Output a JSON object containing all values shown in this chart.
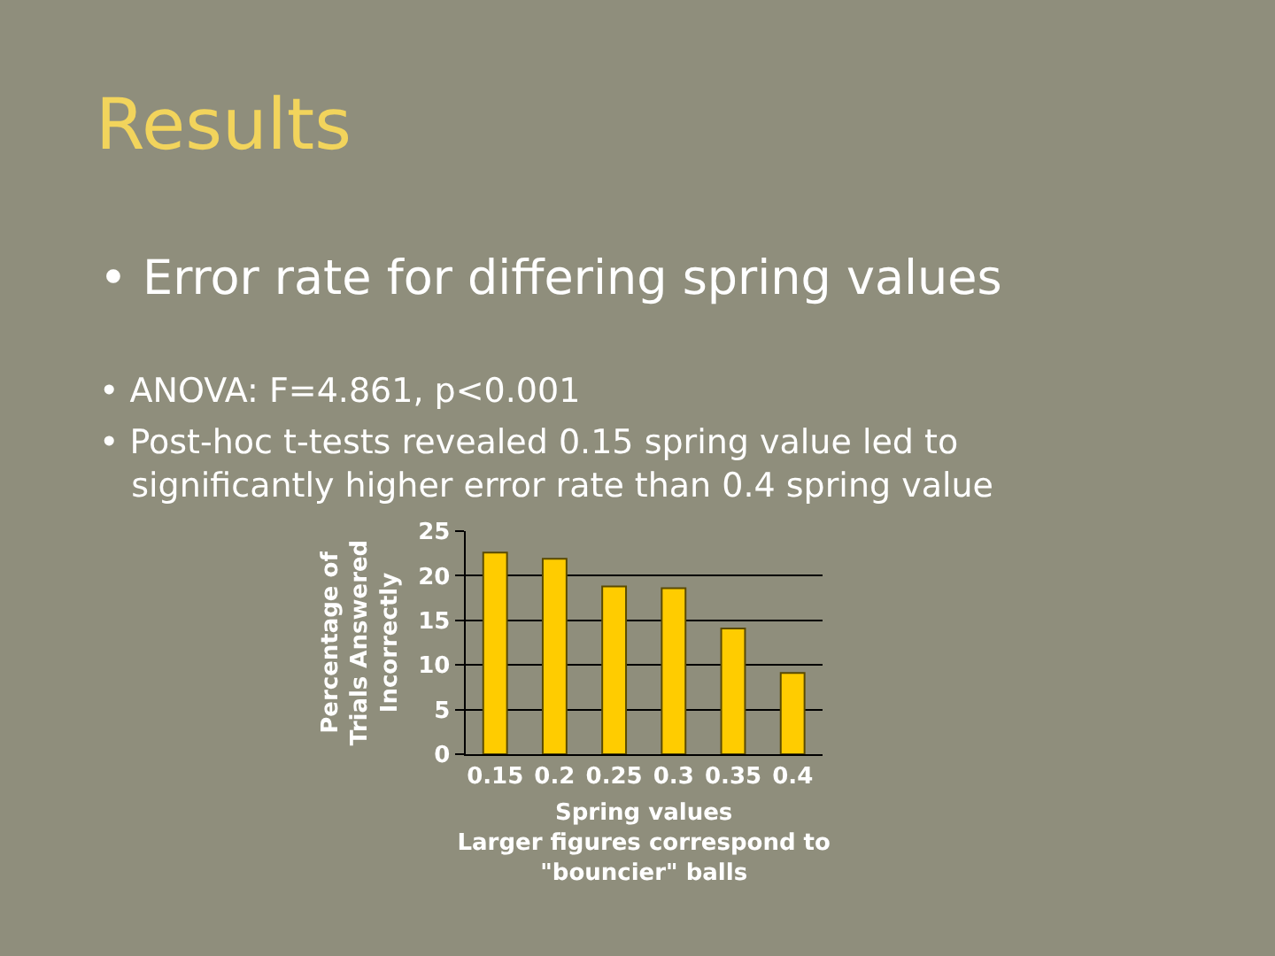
{
  "chart_data": {
    "type": "bar",
    "title": "Results",
    "subtitle": "• Error rate for differing spring values",
    "annotations": [
      "• ANOVA: F=4.861, p<0.001",
      "• Post-hoc t-tests revealed 0.15 spring value led to\n   significantly higher error rate than 0.4 spring value"
    ],
    "xlabel": "Spring values\nLarger figures correspond to\n\"bouncier\" balls",
    "ylabel": "Percentage of\nTrials Answered\nIncorrectly",
    "categories": [
      "0.15",
      "0.2",
      "0.25",
      "0.3",
      "0.35",
      "0.4"
    ],
    "values": [
      22.6,
      21.9,
      18.8,
      18.6,
      14.1,
      9.1
    ],
    "color": "#ffcc00",
    "ylim": [
      0,
      25
    ],
    "yticks": [
      0,
      5,
      10,
      15,
      20,
      25
    ],
    "grid": "y"
  }
}
